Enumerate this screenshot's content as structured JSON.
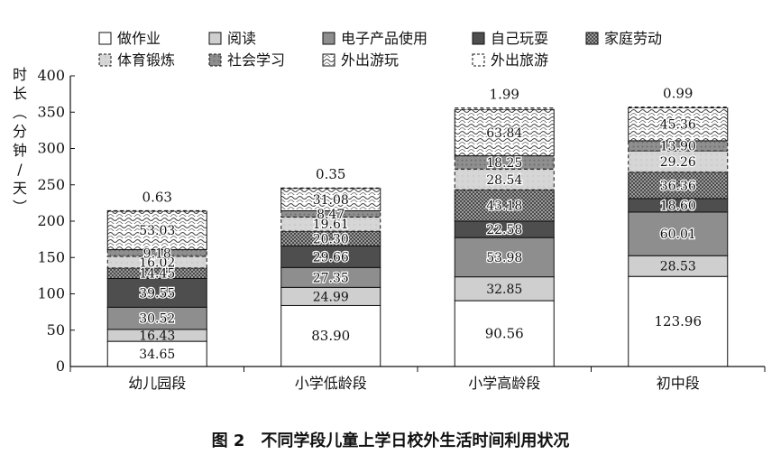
{
  "chart_data": {
    "type": "bar",
    "stacked": true,
    "ylabel": [
      "时",
      "长",
      "︵",
      "分",
      "钟",
      "/",
      "天",
      "︶"
    ],
    "ylim": [
      0,
      400
    ],
    "yticks": [
      0,
      50,
      100,
      150,
      200,
      250,
      300,
      350,
      400
    ],
    "categories": [
      "幼儿园段",
      "小学低龄段",
      "小学高龄段",
      "初中段"
    ],
    "series": [
      {
        "name": "做作业",
        "pattern": "white",
        "values": [
          34.65,
          83.9,
          90.56,
          123.96
        ]
      },
      {
        "name": "阅读",
        "pattern": "lightgray",
        "values": [
          16.43,
          24.99,
          32.85,
          28.53
        ]
      },
      {
        "name": "电子产品使用",
        "pattern": "gray",
        "values": [
          30.52,
          27.35,
          53.98,
          60.01
        ]
      },
      {
        "name": "自己玩耍",
        "pattern": "darkgray",
        "values": [
          39.55,
          29.66,
          22.58,
          18.6
        ]
      },
      {
        "name": "家庭劳动",
        "pattern": "checker",
        "values": [
          14.45,
          20.3,
          43.18,
          36.36
        ]
      },
      {
        "name": "体育锻炼",
        "pattern": "dashed-light",
        "values": [
          16.02,
          19.61,
          28.54,
          29.26
        ]
      },
      {
        "name": "社会学习",
        "pattern": "dashed-gray",
        "values": [
          9.18,
          8.47,
          18.25,
          13.9
        ]
      },
      {
        "name": "外出游玩",
        "pattern": "squiggle",
        "values": [
          53.03,
          31.08,
          63.84,
          45.36
        ]
      },
      {
        "name": "外出旅游",
        "pattern": "dashed-white",
        "values": [
          0.63,
          0.35,
          1.99,
          0.99
        ]
      }
    ],
    "value_labels": [
      [
        "34.65",
        "16.43",
        "30.52",
        "39.55",
        "14.45",
        "16.02",
        "9.18",
        "53.03",
        "0.63"
      ],
      [
        "83.90",
        "24.99",
        "27.35",
        "29.66",
        "20.30",
        "19.61",
        "8.47",
        "31.08",
        "0.35"
      ],
      [
        "90.56",
        "32.85",
        "53.98",
        "22.58",
        "43.18",
        "28.54",
        "18.25",
        "63.84",
        "1.99"
      ],
      [
        "123.96",
        "28.53",
        "60.01",
        "18.60",
        "36.36",
        "29.26",
        "13.90",
        "45.36",
        "0.99"
      ]
    ],
    "legend_placement": "top",
    "grid": false
  },
  "caption": {
    "number": "图 2",
    "text": "不同学段儿童上学日校外生活时间利用状况"
  }
}
